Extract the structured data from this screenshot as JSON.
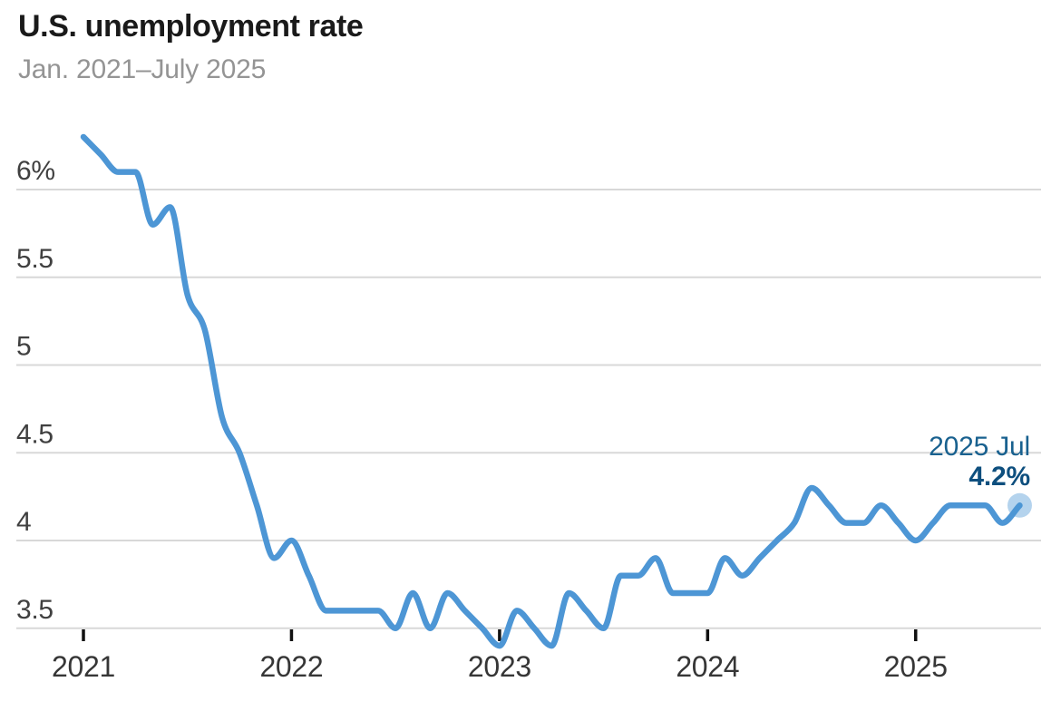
{
  "header": {
    "title": "U.S. unemployment rate",
    "subtitle": "Jan. 2021–July 2025"
  },
  "chart_data": {
    "type": "line",
    "title": "U.S. unemployment rate",
    "subtitle": "Jan. 2021–July 2025",
    "unit": "%",
    "x": [
      "2021-01",
      "2021-02",
      "2021-03",
      "2021-04",
      "2021-05",
      "2021-06",
      "2021-07",
      "2021-08",
      "2021-09",
      "2021-10",
      "2021-11",
      "2021-12",
      "2022-01",
      "2022-02",
      "2022-03",
      "2022-04",
      "2022-05",
      "2022-06",
      "2022-07",
      "2022-08",
      "2022-09",
      "2022-10",
      "2022-11",
      "2022-12",
      "2023-01",
      "2023-02",
      "2023-03",
      "2023-04",
      "2023-05",
      "2023-06",
      "2023-07",
      "2023-08",
      "2023-09",
      "2023-10",
      "2023-11",
      "2023-12",
      "2024-01",
      "2024-02",
      "2024-03",
      "2024-04",
      "2024-05",
      "2024-06",
      "2024-07",
      "2024-08",
      "2024-09",
      "2024-10",
      "2024-11",
      "2024-12",
      "2025-01",
      "2025-02",
      "2025-03",
      "2025-04",
      "2025-05",
      "2025-06",
      "2025-07"
    ],
    "series": [
      {
        "name": "U.S. unemployment rate",
        "values": [
          6.3,
          6.2,
          6.1,
          6.1,
          5.8,
          5.9,
          5.4,
          5.2,
          4.7,
          4.5,
          4.2,
          3.9,
          4.0,
          3.8,
          3.6,
          3.6,
          3.6,
          3.6,
          3.5,
          3.7,
          3.5,
          3.7,
          3.6,
          3.5,
          3.4,
          3.6,
          3.5,
          3.4,
          3.7,
          3.6,
          3.5,
          3.8,
          3.8,
          3.9,
          3.7,
          3.7,
          3.7,
          3.9,
          3.8,
          3.9,
          4.0,
          4.1,
          4.3,
          4.2,
          4.1,
          4.1,
          4.2,
          4.1,
          4.0,
          4.1,
          4.2,
          4.2,
          4.2,
          4.1,
          4.2
        ]
      }
    ],
    "y_axis": {
      "ticks": [
        {
          "value": 3.5,
          "label": "3.5"
        },
        {
          "value": 4,
          "label": "4"
        },
        {
          "value": 4.5,
          "label": "4.5"
        },
        {
          "value": 5,
          "label": "5"
        },
        {
          "value": 5.5,
          "label": "5.5"
        },
        {
          "value": 6,
          "label": "6%"
        }
      ],
      "range": [
        3.4,
        6.3
      ],
      "grid": true
    },
    "x_axis": {
      "ticks": [
        {
          "month_index": 0,
          "label": "2021"
        },
        {
          "month_index": 12,
          "label": "2022"
        },
        {
          "month_index": 24,
          "label": "2023"
        },
        {
          "month_index": 36,
          "label": "2024"
        },
        {
          "month_index": 48,
          "label": "2025"
        }
      ]
    },
    "annotation": {
      "date_label": "2025 Jul",
      "value_label": "4.2%"
    },
    "colors": {
      "line": "#4D96D5",
      "endpoint_halo": "rgba(77,150,213,0.42)",
      "annotation_date": "#19618F",
      "annotation_value": "#0E4F7E",
      "grid": "#D8D8D8",
      "axis_tick": "#111111",
      "y_label": "#404040",
      "x_label": "#363636",
      "title": "#1A1A1A",
      "subtitle": "#949494"
    },
    "legend": null
  }
}
